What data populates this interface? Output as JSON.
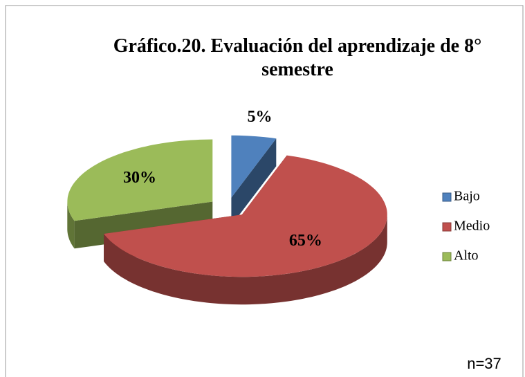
{
  "chart_data": {
    "type": "pie3d",
    "title": "Gráfico.20. Evaluación del aprendizaje de 8° semestre",
    "categories": [
      "Bajo",
      "Medio",
      "Alto"
    ],
    "values": [
      5,
      65,
      30
    ],
    "value_labels": [
      "5%",
      "65%",
      "30%"
    ],
    "colors": [
      "#4f81bd",
      "#c0504d",
      "#9bbb59"
    ],
    "legend": "right",
    "annotation": "n=37"
  }
}
